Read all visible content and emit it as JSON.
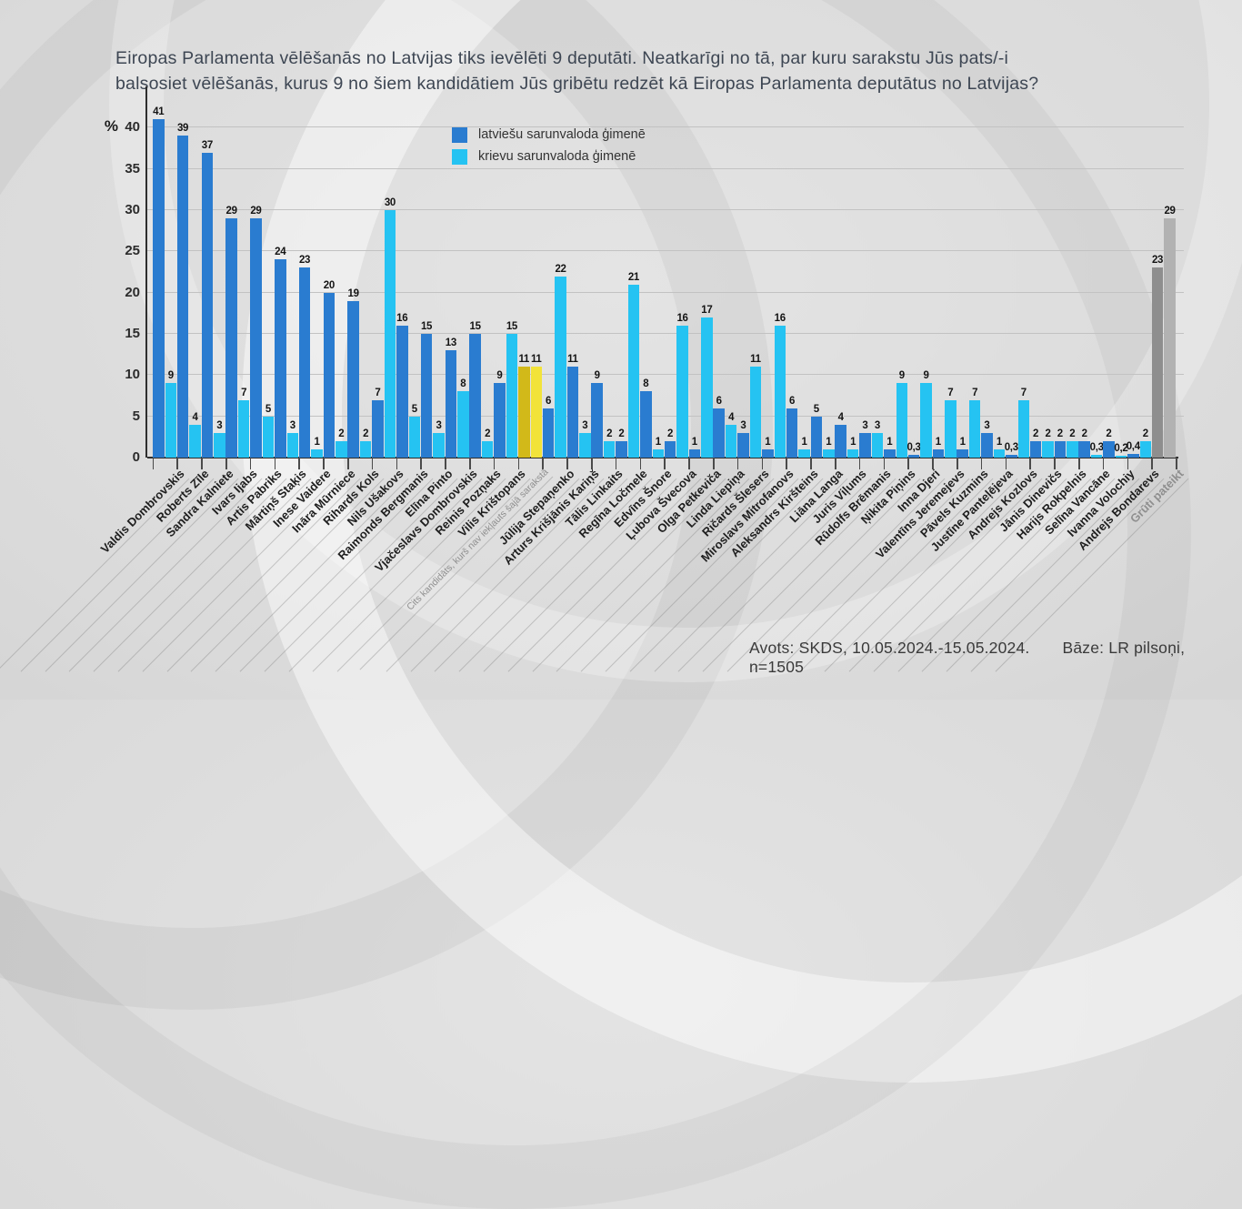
{
  "title": {
    "line1": "Eiropas Parlamenta vēlēšanās no Latvijas tiks ievēlēti 9 deputāti. Neatkarīgi no tā, par kuru sarakstu Jūs pats/-i",
    "line2": "balsosiet vēlēšanās, kurus 9 no šiem kandidātiem Jūs gribētu redzēt kā Eiropas Parlamenta deputātus no Latvijas?"
  },
  "legend": [
    {
      "label": "latviešu sarunvaloda ģimenē",
      "color": "#2a7cd0"
    },
    {
      "label": "krievu sarunvaloda ģimenē",
      "color": "#25c3f2"
    }
  ],
  "footer": {
    "source": "Avots: SKDS, 10.05.2024.-15.05.2024.",
    "base": "Bāze: LR pilsoņi, n=1505"
  },
  "chart_data": {
    "type": "bar",
    "title": "Eiropas Parlamenta vēlēšanās no Latvijas tiks ievēlēti 9 deputāti. Neatkarīgi no tā, par kuru sarakstu Jūs pats/-i balsosiet vēlēšanās, kurus 9 no šiem kandidātiem Jūs gribētu redzēt kā Eiropas Parlamenta deputātus no Latvijas?",
    "ylabel": "%",
    "ylim": [
      0,
      45
    ],
    "yticks": [
      0,
      5,
      10,
      15,
      20,
      25,
      30,
      35,
      40
    ],
    "grid": true,
    "legend_position": "top-center",
    "series_names": [
      "latviešu sarunvaloda ģimenē",
      "krievu sarunvaloda ģimenē"
    ],
    "default_colors": [
      "#2a7cd0",
      "#25c3f2"
    ],
    "special_colors": {
      "other_candidate": [
        "#d2b919",
        "#f2e339"
      ],
      "hard_to_say": [
        "#8e8e8e",
        "#b2b2b2"
      ]
    },
    "categories": [
      {
        "label": "Valdis Dombrovskis",
        "values": [
          41,
          9
        ],
        "value_labels": [
          "41",
          "9"
        ]
      },
      {
        "label": "Roberts Zīle",
        "values": [
          39,
          4
        ],
        "value_labels": [
          "39",
          "4"
        ]
      },
      {
        "label": "Sandra Kalniete",
        "values": [
          37,
          3
        ],
        "value_labels": [
          "37",
          "3"
        ]
      },
      {
        "label": "Ivars Ijabs",
        "values": [
          29,
          7
        ],
        "value_labels": [
          "29",
          "7"
        ]
      },
      {
        "label": "Artis Pabriks",
        "values": [
          29,
          5
        ],
        "value_labels": [
          "29",
          "5"
        ]
      },
      {
        "label": "Mārtiņš Staķis",
        "values": [
          24,
          3
        ],
        "value_labels": [
          "24",
          "3"
        ]
      },
      {
        "label": "Inese Vaidere",
        "values": [
          23,
          1
        ],
        "value_labels": [
          "23",
          "1"
        ]
      },
      {
        "label": "Ināra Mūrniece",
        "values": [
          20,
          2
        ],
        "value_labels": [
          "20",
          "2"
        ]
      },
      {
        "label": "Rihards Kols",
        "values": [
          19,
          2
        ],
        "value_labels": [
          "19",
          "2"
        ]
      },
      {
        "label": "Nils Ušakovs",
        "values": [
          7,
          30
        ],
        "value_labels": [
          "7",
          "30"
        ]
      },
      {
        "label": "Raimonds Bergmanis",
        "values": [
          16,
          5
        ],
        "value_labels": [
          "16",
          "5"
        ]
      },
      {
        "label": "Elīna Pinto",
        "values": [
          15,
          3
        ],
        "value_labels": [
          "15",
          "3"
        ]
      },
      {
        "label": "Vjačeslavs Dombrovskis",
        "values": [
          13,
          8
        ],
        "value_labels": [
          "13",
          "8"
        ]
      },
      {
        "label": "Reinis Pozņaks",
        "values": [
          15,
          2
        ],
        "value_labels": [
          "15",
          "2"
        ]
      },
      {
        "label": "Vilis Krištopans",
        "values": [
          9,
          15
        ],
        "value_labels": [
          "9",
          "15"
        ]
      },
      {
        "label": "Cits kandidāts, kurš nav iekļauts šajā sarakstā",
        "values": [
          11,
          11
        ],
        "value_labels": [
          "11",
          "11"
        ],
        "colors": [
          "#d2b919",
          "#f2e339"
        ],
        "label_class": "muted-small"
      },
      {
        "label": "Jūlija Stepaņenko",
        "values": [
          6,
          22
        ],
        "value_labels": [
          "6",
          "22"
        ]
      },
      {
        "label": "Arturs Krišjānis Kariņš",
        "values": [
          11,
          3
        ],
        "value_labels": [
          "11",
          "3"
        ]
      },
      {
        "label": "Tālis Linkaits",
        "values": [
          9,
          2
        ],
        "value_labels": [
          "9",
          "2"
        ]
      },
      {
        "label": "Regīna Ločmele",
        "values": [
          2,
          21
        ],
        "value_labels": [
          "2",
          "21"
        ]
      },
      {
        "label": "Edvīns Šnore",
        "values": [
          8,
          1
        ],
        "value_labels": [
          "8",
          "1"
        ]
      },
      {
        "label": "Ļubova Švecova",
        "values": [
          2,
          16
        ],
        "value_labels": [
          "2",
          "16"
        ]
      },
      {
        "label": "Olga Petkeviča",
        "values": [
          1,
          17
        ],
        "value_labels": [
          "1",
          "17"
        ]
      },
      {
        "label": "Linda Liepiņa",
        "values": [
          6,
          4
        ],
        "value_labels": [
          "6",
          "4"
        ]
      },
      {
        "label": "Ričards Šlesers",
        "values": [
          3,
          11
        ],
        "value_labels": [
          "3",
          "11"
        ]
      },
      {
        "label": "Miroslavs Mitrofanovs",
        "values": [
          1,
          16
        ],
        "value_labels": [
          "1",
          "16"
        ]
      },
      {
        "label": "Aleksandrs Kiršteins",
        "values": [
          6,
          1
        ],
        "value_labels": [
          "6",
          "1"
        ]
      },
      {
        "label": "Liāna Langa",
        "values": [
          5,
          1
        ],
        "value_labels": [
          "5",
          "1"
        ]
      },
      {
        "label": "Juris Viļums",
        "values": [
          4,
          1
        ],
        "value_labels": [
          "4",
          "1"
        ]
      },
      {
        "label": "Rūdolfs Brēmanis",
        "values": [
          3,
          3
        ],
        "value_labels": [
          "3",
          "3"
        ]
      },
      {
        "label": "Ņikita Piņins",
        "values": [
          1,
          9
        ],
        "value_labels": [
          "1",
          "9"
        ]
      },
      {
        "label": "Inna Djeri",
        "values": [
          0.3,
          9
        ],
        "value_labels": [
          "0,3",
          "9"
        ]
      },
      {
        "label": "Valentīns Jeremejevs",
        "values": [
          1,
          7
        ],
        "value_labels": [
          "1",
          "7"
        ]
      },
      {
        "label": "Pāvels Kuzmins",
        "values": [
          1,
          7
        ],
        "value_labels": [
          "1",
          "7"
        ]
      },
      {
        "label": "Justīne Panteļējeva",
        "values": [
          3,
          1
        ],
        "value_labels": [
          "3",
          "1"
        ]
      },
      {
        "label": "Andrejs Kozlovs",
        "values": [
          0.3,
          7
        ],
        "value_labels": [
          "0,3",
          "7"
        ]
      },
      {
        "label": "Jānis Dinevičs",
        "values": [
          2,
          2
        ],
        "value_labels": [
          "2",
          "2"
        ]
      },
      {
        "label": "Harijs Rokpelnis",
        "values": [
          2,
          2
        ],
        "value_labels": [
          "2",
          "2"
        ]
      },
      {
        "label": "Selīna Vancāne",
        "values": [
          2,
          0.3
        ],
        "value_labels": [
          "2",
          "0,3"
        ]
      },
      {
        "label": "Ivanna Volochiy",
        "values": [
          2,
          0.2
        ],
        "value_labels": [
          "2",
          "0,2"
        ]
      },
      {
        "label": "Andrejs Bondarevs",
        "values": [
          0.4,
          2
        ],
        "value_labels": [
          "0,4",
          "2"
        ]
      },
      {
        "label": "Grūti pateikt",
        "values": [
          23,
          29
        ],
        "value_labels": [
          "23",
          "29"
        ],
        "colors": [
          "#8e8e8e",
          "#b2b2b2"
        ],
        "label_class": "muted"
      }
    ]
  }
}
